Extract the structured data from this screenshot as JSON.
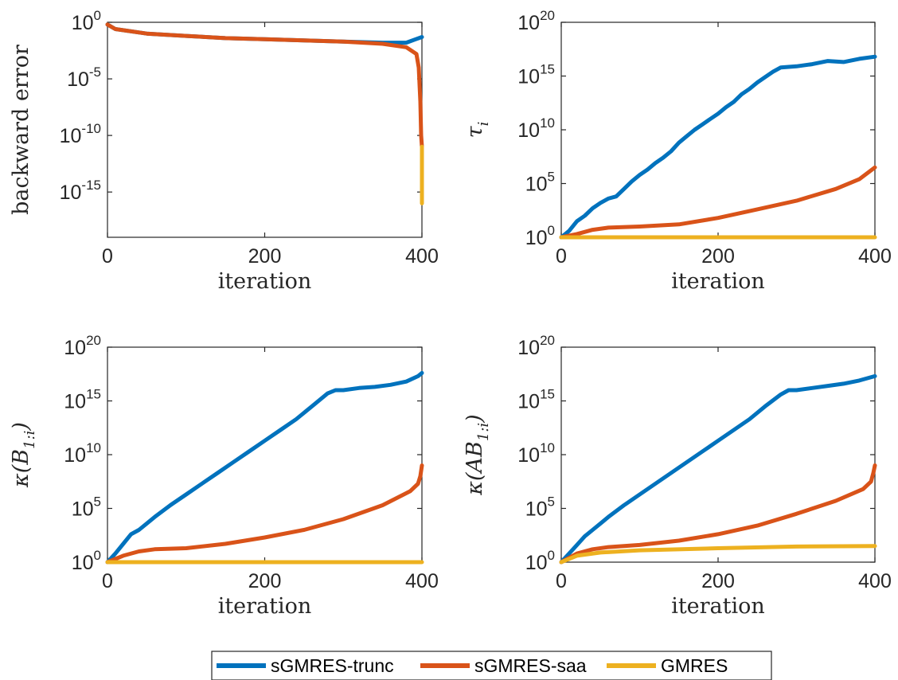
{
  "legend": [
    {
      "name": "sGMRES-trunc",
      "color": "#0072BD"
    },
    {
      "name": "sGMRES-saa",
      "color": "#D95319"
    },
    {
      "name": "GMRES",
      "color": "#EDB120"
    }
  ],
  "chart_data": [
    {
      "id": "backward-error",
      "type": "line",
      "xlabel": "iteration",
      "ylabel": "backward error",
      "xlim": [
        0,
        400
      ],
      "ylim_exp": [
        -19,
        0
      ],
      "yscale": "log",
      "xticks": [
        "0",
        "200",
        "400"
      ],
      "yticks": [
        {
          "base": "10",
          "exp": "0",
          "e": 0
        },
        {
          "base": "10",
          "exp": "-5",
          "e": -5
        },
        {
          "base": "10",
          "exp": "-10",
          "e": -10
        },
        {
          "base": "10",
          "exp": "-15",
          "e": -15
        }
      ],
      "series": [
        {
          "name": "sGMRES-trunc",
          "color": "#0072BD",
          "points": [
            [
              0,
              -0.2
            ],
            [
              10,
              -0.6
            ],
            [
              50,
              -1.0
            ],
            [
              100,
              -1.2
            ],
            [
              150,
              -1.4
            ],
            [
              200,
              -1.5
            ],
            [
              250,
              -1.6
            ],
            [
              300,
              -1.7
            ],
            [
              350,
              -1.8
            ],
            [
              380,
              -1.8
            ],
            [
              392,
              -1.5
            ],
            [
              400,
              -1.3
            ]
          ]
        },
        {
          "name": "sGMRES-saa",
          "color": "#D95319",
          "points": [
            [
              0,
              -0.2
            ],
            [
              10,
              -0.6
            ],
            [
              50,
              -1.0
            ],
            [
              100,
              -1.2
            ],
            [
              150,
              -1.4
            ],
            [
              200,
              -1.5
            ],
            [
              250,
              -1.6
            ],
            [
              300,
              -1.7
            ],
            [
              350,
              -1.9
            ],
            [
              380,
              -2.2
            ],
            [
              393,
              -2.8
            ],
            [
              396,
              -4.0
            ],
            [
              398,
              -7.0
            ],
            [
              399,
              -10.0
            ],
            [
              400,
              -11.0
            ]
          ]
        },
        {
          "name": "GMRES",
          "color": "#EDB120",
          "points": [
            [
              400,
              -11.0
            ],
            [
              400,
              -16.0
            ]
          ]
        }
      ]
    },
    {
      "id": "tau",
      "type": "line",
      "xlabel": "iteration",
      "ylabel_symbol": "τ",
      "ylabel_sub": "i",
      "xlim": [
        0,
        400
      ],
      "ylim_exp": [
        0,
        20
      ],
      "yscale": "log",
      "xticks": [
        "0",
        "200",
        "400"
      ],
      "yticks": [
        {
          "base": "10",
          "exp": "0",
          "e": 0
        },
        {
          "base": "10",
          "exp": "5",
          "e": 5
        },
        {
          "base": "10",
          "exp": "10",
          "e": 10
        },
        {
          "base": "10",
          "exp": "15",
          "e": 15
        },
        {
          "base": "10",
          "exp": "20",
          "e": 20
        }
      ],
      "series": [
        {
          "name": "sGMRES-trunc",
          "color": "#0072BD",
          "points": [
            [
              0,
              0
            ],
            [
              10,
              0.6
            ],
            [
              20,
              1.5
            ],
            [
              30,
              2.0
            ],
            [
              40,
              2.7
            ],
            [
              50,
              3.2
            ],
            [
              60,
              3.6
            ],
            [
              70,
              3.8
            ],
            [
              80,
              4.5
            ],
            [
              90,
              5.2
            ],
            [
              100,
              5.8
            ],
            [
              110,
              6.3
            ],
            [
              120,
              6.9
            ],
            [
              130,
              7.4
            ],
            [
              140,
              8.0
            ],
            [
              150,
              8.8
            ],
            [
              160,
              9.4
            ],
            [
              170,
              10.0
            ],
            [
              180,
              10.5
            ],
            [
              190,
              11.0
            ],
            [
              200,
              11.5
            ],
            [
              210,
              12.1
            ],
            [
              220,
              12.6
            ],
            [
              230,
              13.3
            ],
            [
              240,
              13.8
            ],
            [
              250,
              14.4
            ],
            [
              260,
              14.9
            ],
            [
              270,
              15.4
            ],
            [
              280,
              15.8
            ],
            [
              300,
              15.9
            ],
            [
              320,
              16.1
            ],
            [
              340,
              16.4
            ],
            [
              360,
              16.3
            ],
            [
              380,
              16.6
            ],
            [
              400,
              16.8
            ]
          ]
        },
        {
          "name": "sGMRES-saa",
          "color": "#D95319",
          "points": [
            [
              0,
              0
            ],
            [
              20,
              0.3
            ],
            [
              40,
              0.7
            ],
            [
              60,
              0.9
            ],
            [
              100,
              1.0
            ],
            [
              150,
              1.2
            ],
            [
              200,
              1.8
            ],
            [
              250,
              2.6
            ],
            [
              300,
              3.4
            ],
            [
              350,
              4.5
            ],
            [
              380,
              5.4
            ],
            [
              400,
              6.5
            ]
          ]
        },
        {
          "name": "GMRES",
          "color": "#EDB120",
          "points": [
            [
              0,
              0
            ],
            [
              400,
              0
            ]
          ]
        }
      ]
    },
    {
      "id": "kappa-b",
      "type": "line",
      "xlabel": "iteration",
      "ylabel_symbol": "κ(B",
      "ylabel_sub": "1:i",
      "ylabel_end": ")",
      "xlim": [
        0,
        400
      ],
      "ylim_exp": [
        0,
        20
      ],
      "yscale": "log",
      "xticks": [
        "0",
        "200",
        "400"
      ],
      "yticks": [
        {
          "base": "10",
          "exp": "0",
          "e": 0
        },
        {
          "base": "10",
          "exp": "5",
          "e": 5
        },
        {
          "base": "10",
          "exp": "10",
          "e": 10
        },
        {
          "base": "10",
          "exp": "15",
          "e": 15
        },
        {
          "base": "10",
          "exp": "20",
          "e": 20
        }
      ],
      "series": [
        {
          "name": "sGMRES-trunc",
          "color": "#0072BD",
          "points": [
            [
              0,
              0
            ],
            [
              10,
              0.8
            ],
            [
              20,
              1.7
            ],
            [
              30,
              2.6
            ],
            [
              40,
              3.0
            ],
            [
              50,
              3.6
            ],
            [
              60,
              4.2
            ],
            [
              80,
              5.3
            ],
            [
              100,
              6.3
            ],
            [
              120,
              7.3
            ],
            [
              140,
              8.3
            ],
            [
              160,
              9.3
            ],
            [
              180,
              10.3
            ],
            [
              200,
              11.3
            ],
            [
              220,
              12.3
            ],
            [
              240,
              13.3
            ],
            [
              260,
              14.5
            ],
            [
              280,
              15.7
            ],
            [
              290,
              16.0
            ],
            [
              300,
              16.0
            ],
            [
              320,
              16.2
            ],
            [
              340,
              16.3
            ],
            [
              360,
              16.5
            ],
            [
              380,
              16.8
            ],
            [
              395,
              17.3
            ],
            [
              400,
              17.6
            ]
          ]
        },
        {
          "name": "sGMRES-saa",
          "color": "#D95319",
          "points": [
            [
              0,
              0
            ],
            [
              20,
              0.6
            ],
            [
              40,
              1.0
            ],
            [
              60,
              1.2
            ],
            [
              100,
              1.3
            ],
            [
              150,
              1.7
            ],
            [
              200,
              2.3
            ],
            [
              250,
              3.0
            ],
            [
              300,
              4.0
            ],
            [
              350,
              5.3
            ],
            [
              385,
              6.6
            ],
            [
              395,
              7.3
            ],
            [
              398,
              8.0
            ],
            [
              400,
              9.0
            ]
          ]
        },
        {
          "name": "GMRES",
          "color": "#EDB120",
          "points": [
            [
              0,
              0
            ],
            [
              400,
              0
            ]
          ]
        }
      ]
    },
    {
      "id": "kappa-ab",
      "type": "line",
      "xlabel": "iteration",
      "ylabel_symbol": "κ(AB",
      "ylabel_sub": "1:i",
      "ylabel_end": ")",
      "xlim": [
        0,
        400
      ],
      "ylim_exp": [
        0,
        20
      ],
      "yscale": "log",
      "xticks": [
        "0",
        "200",
        "400"
      ],
      "yticks": [
        {
          "base": "10",
          "exp": "0",
          "e": 0
        },
        {
          "base": "10",
          "exp": "5",
          "e": 5
        },
        {
          "base": "10",
          "exp": "10",
          "e": 10
        },
        {
          "base": "10",
          "exp": "15",
          "e": 15
        },
        {
          "base": "10",
          "exp": "20",
          "e": 20
        }
      ],
      "series": [
        {
          "name": "sGMRES-trunc",
          "color": "#0072BD",
          "points": [
            [
              0,
              0
            ],
            [
              10,
              0.8
            ],
            [
              20,
              1.6
            ],
            [
              30,
              2.4
            ],
            [
              40,
              3.0
            ],
            [
              50,
              3.6
            ],
            [
              60,
              4.2
            ],
            [
              80,
              5.3
            ],
            [
              100,
              6.3
            ],
            [
              120,
              7.3
            ],
            [
              140,
              8.3
            ],
            [
              160,
              9.3
            ],
            [
              180,
              10.3
            ],
            [
              200,
              11.3
            ],
            [
              220,
              12.3
            ],
            [
              240,
              13.3
            ],
            [
              260,
              14.5
            ],
            [
              280,
              15.6
            ],
            [
              290,
              16.0
            ],
            [
              300,
              16.0
            ],
            [
              320,
              16.2
            ],
            [
              340,
              16.4
            ],
            [
              360,
              16.6
            ],
            [
              380,
              16.9
            ],
            [
              400,
              17.3
            ]
          ]
        },
        {
          "name": "sGMRES-saa",
          "color": "#D95319",
          "points": [
            [
              0,
              0
            ],
            [
              20,
              0.8
            ],
            [
              40,
              1.2
            ],
            [
              60,
              1.4
            ],
            [
              100,
              1.6
            ],
            [
              150,
              2.0
            ],
            [
              200,
              2.6
            ],
            [
              250,
              3.4
            ],
            [
              300,
              4.5
            ],
            [
              350,
              5.7
            ],
            [
              385,
              6.8
            ],
            [
              395,
              7.5
            ],
            [
              398,
              8.3
            ],
            [
              400,
              9.0
            ]
          ]
        },
        {
          "name": "GMRES",
          "color": "#EDB120",
          "points": [
            [
              0,
              0
            ],
            [
              20,
              0.6
            ],
            [
              50,
              0.9
            ],
            [
              100,
              1.1
            ],
            [
              200,
              1.3
            ],
            [
              300,
              1.45
            ],
            [
              400,
              1.5
            ]
          ]
        }
      ]
    }
  ]
}
